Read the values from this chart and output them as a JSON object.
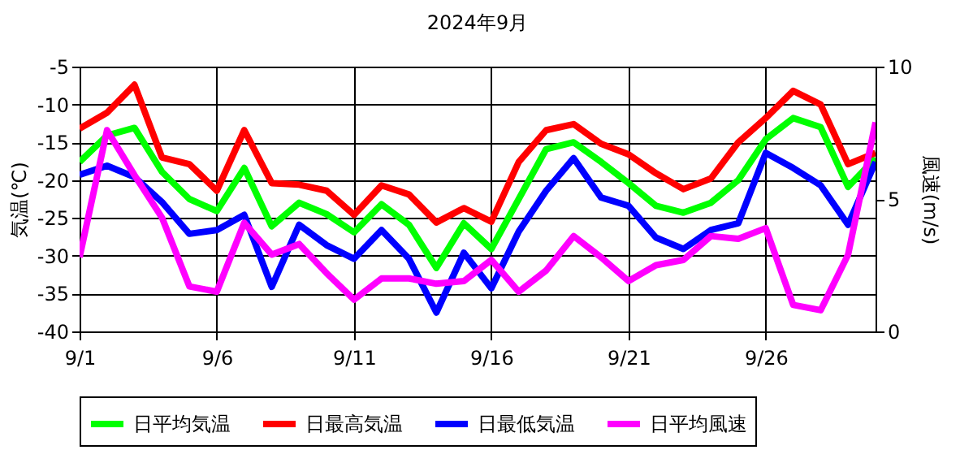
{
  "chart_data": {
    "type": "line",
    "title": "2024年9月",
    "ylabel": "気温(℃)",
    "y2label": "風速(m/s)",
    "x": [
      "2024-09-01",
      "2024-09-02",
      "2024-09-03",
      "2024-09-04",
      "2024-09-05",
      "2024-09-06",
      "2024-09-07",
      "2024-09-08",
      "2024-09-09",
      "2024-09-10",
      "2024-09-11",
      "2024-09-12",
      "2024-09-13",
      "2024-09-14",
      "2024-09-15",
      "2024-09-16",
      "2024-09-17",
      "2024-09-18",
      "2024-09-19",
      "2024-09-20",
      "2024-09-21",
      "2024-09-22",
      "2024-09-23",
      "2024-09-24",
      "2024-09-25",
      "2024-09-26",
      "2024-09-27",
      "2024-09-28",
      "2024-09-29",
      "2024-09-30"
    ],
    "series": [
      {
        "name": "日平均気温",
        "color": "#00ff00",
        "values": [
          -17.6,
          -14.1,
          -13.1,
          -18.9,
          -22.5,
          -24.1,
          -18.4,
          -26.1,
          -23.0,
          -24.5,
          -26.9,
          -23.2,
          -25.9,
          -31.6,
          -25.7,
          -29.1,
          -22.5,
          -15.9,
          -15.0,
          -17.6,
          -20.4,
          -23.4,
          -24.3,
          -23.0,
          -20.0,
          -14.6,
          -11.8,
          -13.0,
          -20.9,
          -17.1
        ]
      },
      {
        "name": "日最高気温",
        "color": "#ff0000",
        "values": [
          -13.2,
          -11.1,
          -7.4,
          -17.0,
          -17.9,
          -21.4,
          -13.4,
          -20.4,
          -20.6,
          -21.4,
          -24.6,
          -20.7,
          -21.9,
          -25.6,
          -23.7,
          -25.5,
          -17.6,
          -13.4,
          -12.6,
          -15.2,
          -16.6,
          -19.1,
          -21.2,
          -19.8,
          -15.0,
          -11.8,
          -8.2,
          -10.0,
          -17.9,
          -16.4
        ]
      },
      {
        "name": "日最低気温",
        "color": "#0000ff",
        "values": [
          -19.3,
          -18.1,
          -19.6,
          -22.9,
          -27.1,
          -26.6,
          -24.6,
          -34.1,
          -25.9,
          -28.6,
          -30.4,
          -26.6,
          -30.4,
          -37.5,
          -29.6,
          -34.3,
          -26.8,
          -21.4,
          -17.1,
          -22.3,
          -23.4,
          -27.6,
          -29.1,
          -26.6,
          -25.7,
          -16.4,
          -18.4,
          -20.7,
          -25.9,
          -17.6
        ]
      },
      {
        "name": "日平均風速",
        "color": "#ff00ff",
        "axis": "y2",
        "values": [
          2.8,
          7.6,
          5.9,
          4.3,
          1.7,
          1.5,
          4.1,
          2.9,
          3.3,
          2.2,
          1.2,
          2.0,
          2.0,
          1.8,
          1.9,
          2.7,
          1.5,
          2.3,
          3.6,
          2.8,
          1.9,
          2.5,
          2.7,
          3.6,
          3.5,
          3.9,
          1.0,
          0.8,
          2.9,
          7.9
        ]
      }
    ],
    "xlim": [
      "2024-09-01",
      "2024-09-30"
    ],
    "xticks": [
      {
        "value": "2024-09-01",
        "label": "9/1"
      },
      {
        "value": "2024-09-06",
        "label": "9/6"
      },
      {
        "value": "2024-09-11",
        "label": "9/11"
      },
      {
        "value": "2024-09-16",
        "label": "9/16"
      },
      {
        "value": "2024-09-21",
        "label": "9/21"
      },
      {
        "value": "2024-09-26",
        "label": "9/26"
      }
    ],
    "ylim": [
      -40,
      -5
    ],
    "yticks": [
      -40,
      -35,
      -30,
      -25,
      -20,
      -15,
      -10,
      -5
    ],
    "y2lim": [
      0,
      10
    ],
    "y2ticks": [
      0,
      5,
      10
    ],
    "grid": true,
    "legend": "bottom",
    "marker": "none",
    "line_style": "solid"
  }
}
